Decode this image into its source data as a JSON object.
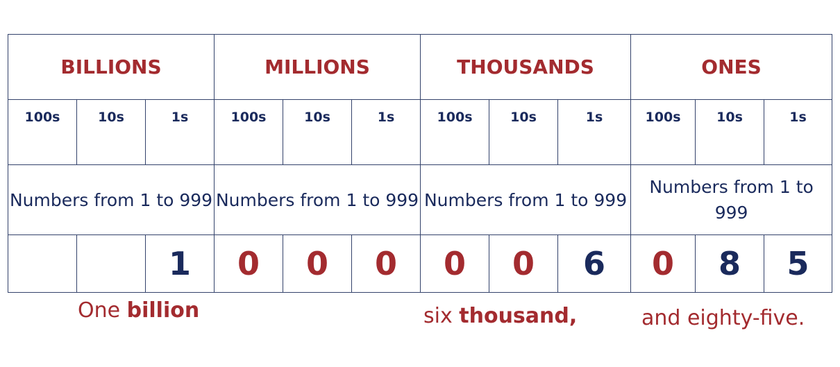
{
  "colors": {
    "red": "#a32b2f",
    "navy": "#1a2a5c",
    "border": "#33426b"
  },
  "groups": [
    {
      "label": "BILLIONS",
      "description": "Numbers from 1 to 999"
    },
    {
      "label": "MILLIONS",
      "description": "Numbers from 1 to 999"
    },
    {
      "label": "THOUSANDS",
      "description": "Numbers from 1 to 999"
    },
    {
      "label": "ONES",
      "description": "Numbers from 1 to 999"
    }
  ],
  "places": [
    "100s",
    "10s",
    "1s",
    "100s",
    "10s",
    "1s",
    "100s",
    "10s",
    "1s",
    "100s",
    "10s",
    "1s"
  ],
  "digits": [
    {
      "value": "",
      "color": "navy"
    },
    {
      "value": "",
      "color": "navy"
    },
    {
      "value": "1",
      "color": "navy"
    },
    {
      "value": "0",
      "color": "red"
    },
    {
      "value": "0",
      "color": "red"
    },
    {
      "value": "0",
      "color": "red"
    },
    {
      "value": "0",
      "color": "red"
    },
    {
      "value": "0",
      "color": "red"
    },
    {
      "value": "6",
      "color": "navy"
    },
    {
      "value": "0",
      "color": "red"
    },
    {
      "value": "8",
      "color": "navy"
    },
    {
      "value": "5",
      "color": "navy"
    }
  ],
  "words": {
    "billion_prefix": "One ",
    "billion_bold": "billion",
    "thousand_prefix": "six ",
    "thousand_bold": "thousand,",
    "ones_text": "and eighty-five."
  }
}
